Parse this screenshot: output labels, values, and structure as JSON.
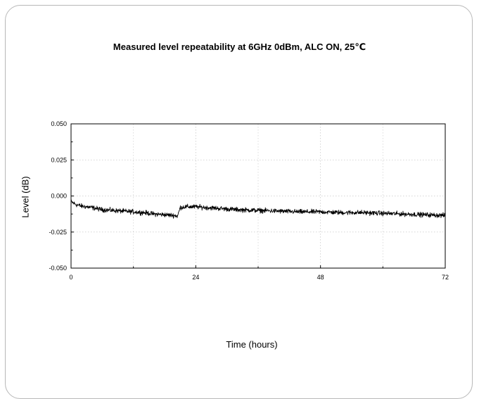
{
  "chart_data": {
    "type": "line",
    "title": "Measured level repeatability at 6GHz 0dBm, ALC ON, 25℃",
    "xlabel": "Time (hours)",
    "ylabel": "Level (dB)",
    "xlim": [
      0,
      72
    ],
    "ylim": [
      -0.05,
      0.05
    ],
    "x_ticks": [
      0,
      24,
      48,
      72
    ],
    "y_ticks": [
      -0.05,
      -0.025,
      0.0,
      0.025,
      0.05
    ],
    "x_tick_labels": [
      "0",
      "24",
      "48",
      "72"
    ],
    "y_tick_labels": [
      "-0.050",
      "-0.025",
      "0.000",
      "0.025",
      "0.050"
    ],
    "grid": true,
    "series": [
      {
        "color": "#000000",
        "noise_amplitude": 0.0015,
        "x": [
          0,
          1,
          2,
          4,
          6,
          8,
          10,
          12,
          14,
          16,
          18,
          20,
          20.5,
          21,
          22,
          24,
          26,
          28,
          30,
          32,
          36,
          40,
          44,
          48,
          52,
          56,
          60,
          64,
          68,
          72
        ],
        "y": [
          -0.004,
          -0.006,
          -0.007,
          -0.008,
          -0.0095,
          -0.01,
          -0.0105,
          -0.011,
          -0.0115,
          -0.0125,
          -0.013,
          -0.0135,
          -0.014,
          -0.008,
          -0.0075,
          -0.0075,
          -0.008,
          -0.0085,
          -0.009,
          -0.0095,
          -0.01,
          -0.0105,
          -0.011,
          -0.011,
          -0.0115,
          -0.0115,
          -0.012,
          -0.0125,
          -0.013,
          -0.0135
        ]
      }
    ]
  }
}
